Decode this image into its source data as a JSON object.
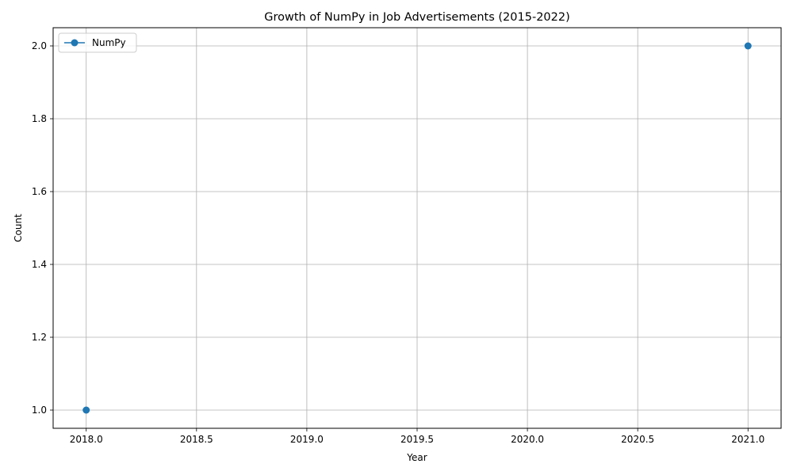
{
  "chart_data": {
    "type": "line",
    "title": "Growth of NumPy in Job Advertisements (2015-2022)",
    "xlabel": "Year",
    "ylabel": "Count",
    "xlim": [
      2017.85,
      2021.15
    ],
    "ylim": [
      0.95,
      2.05
    ],
    "x_ticks": [
      2018.0,
      2018.5,
      2019.0,
      2019.5,
      2020.0,
      2020.5,
      2021.0
    ],
    "x_tick_labels": [
      "2018.0",
      "2018.5",
      "2019.0",
      "2019.5",
      "2020.0",
      "2020.5",
      "2021.0"
    ],
    "y_ticks": [
      1.0,
      1.2,
      1.4,
      1.6,
      1.8,
      2.0
    ],
    "y_tick_labels": [
      "1.0",
      "1.2",
      "1.4",
      "1.6",
      "1.8",
      "2.0"
    ],
    "grid": true,
    "legend_position": "top-left",
    "series": [
      {
        "name": "NumPy",
        "color": "#1f77b4",
        "marker": "circle",
        "x": [
          2018,
          2021
        ],
        "y": [
          1,
          2
        ],
        "line_segments": []
      }
    ]
  }
}
